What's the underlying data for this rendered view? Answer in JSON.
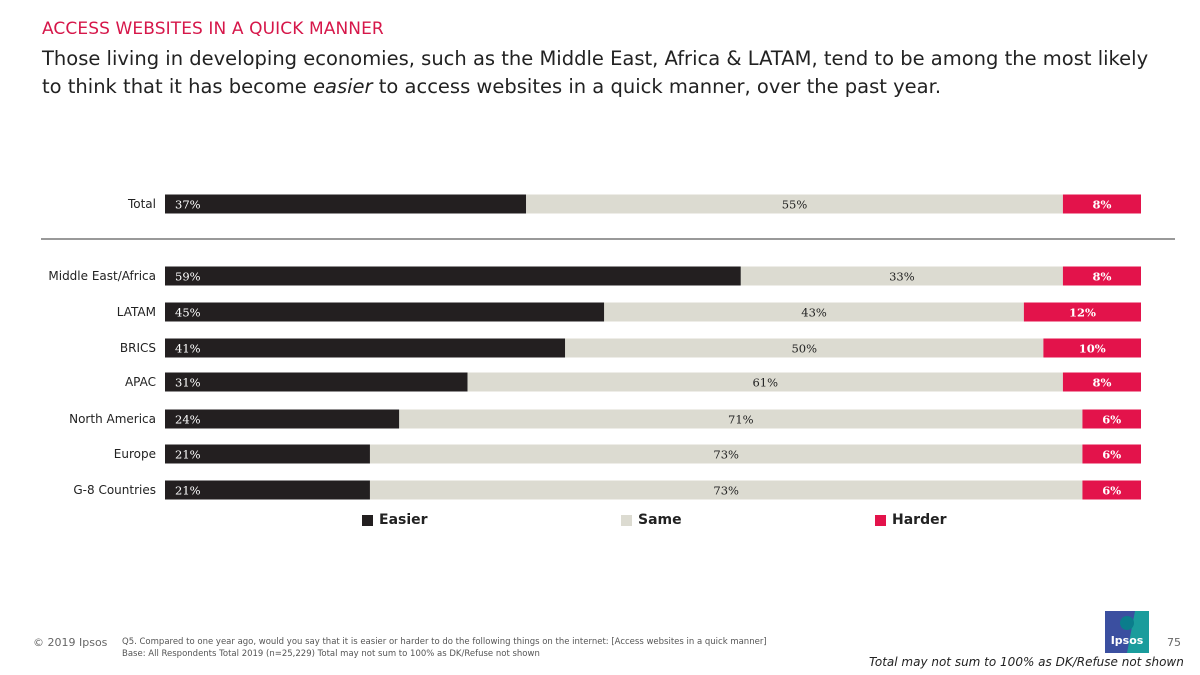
{
  "header": {
    "kicker": "ACCESS WEBSITES IN A QUICK MANNER",
    "headline_pre": "Those living in developing economies, such as the Middle East, Africa & LATAM, tend to be among the most likely to think that it has become ",
    "headline_em": "easier",
    "headline_post": " to access websites in a quick manner, over the past year."
  },
  "colors": {
    "easier": "#231f20",
    "same": "#dcdbd1",
    "harder": "#e3134b",
    "accent": "#d6174a"
  },
  "chart_data": {
    "type": "bar",
    "orientation": "horizontal",
    "stacked": true,
    "categories": [
      "Total",
      "Middle East/Africa",
      "LATAM",
      "BRICS",
      "APAC",
      "North America",
      "Europe",
      "G-8 Countries"
    ],
    "series": [
      {
        "name": "Easier",
        "values": [
          37,
          59,
          45,
          41,
          31,
          24,
          21,
          21
        ]
      },
      {
        "name": "Same",
        "values": [
          55,
          33,
          43,
          50,
          61,
          71,
          73,
          73
        ]
      },
      {
        "name": "Harder",
        "values": [
          8,
          8,
          12,
          10,
          8,
          6,
          6,
          6
        ]
      }
    ],
    "value_suffix": "%",
    "xlim": [
      0,
      100
    ],
    "legend": [
      "Easier",
      "Same",
      "Harder"
    ],
    "legend_position": "bottom",
    "separator_after": "Total"
  },
  "footer": {
    "copyright": "© 2019 Ipsos",
    "question": "Q5. Compared to one year ago, would you say that it is easier or harder to do the following things on the internet: [Access websites in a quick manner]",
    "base": "Base: All Respondents Total  2019 (n=25,229) Total may not sum to 100% as DK/Refuse not shown",
    "page_number": "75",
    "logo_text": "Ipsos",
    "note": "Total may not sum to 100% as DK/Refuse not shown"
  }
}
